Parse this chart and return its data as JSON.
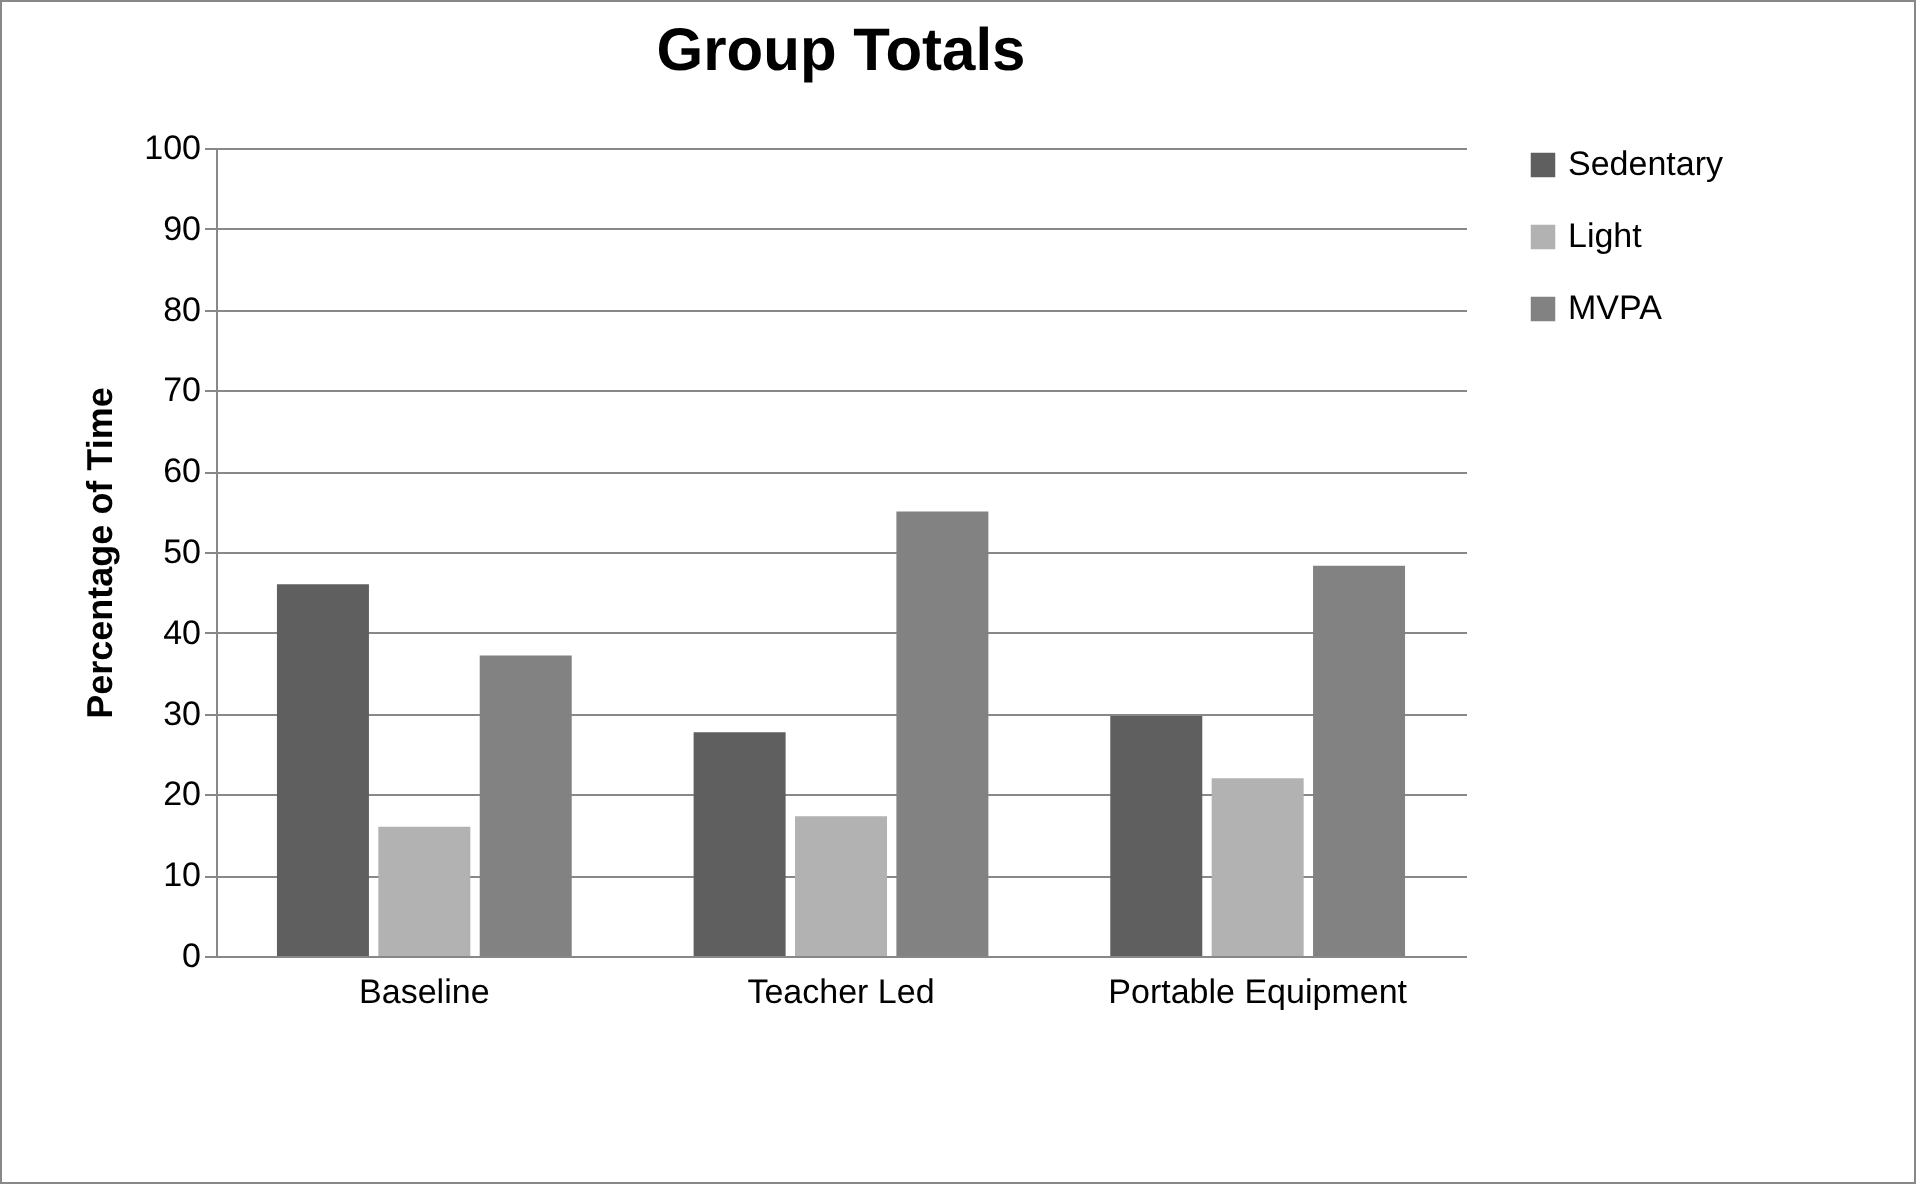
{
  "chart_data": {
    "type": "bar",
    "title": "Group Totals",
    "ylabel": "Percentage of Time",
    "categories": [
      "Baseline",
      "Teacher Led",
      "Portable Equipment"
    ],
    "series": [
      {
        "name": "Sedentary",
        "color": "#5f5f5f",
        "values": [
          46,
          27.7,
          29.7
        ]
      },
      {
        "name": "Light",
        "color": "#b2b2b2",
        "values": [
          16,
          17.3,
          22
        ]
      },
      {
        "name": "MVPA",
        "color": "#828282",
        "values": [
          37.2,
          55,
          48.3
        ]
      }
    ],
    "ylim": [
      0,
      100
    ],
    "yticks": [
      0,
      10,
      20,
      30,
      40,
      50,
      60,
      70,
      80,
      90,
      100
    ],
    "grid": "y",
    "legend": "right"
  }
}
